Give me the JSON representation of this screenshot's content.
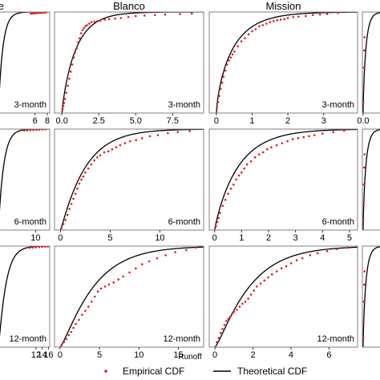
{
  "chart_data": {
    "type": "scatter",
    "xlabel": "Runoff",
    "legend": {
      "placement": "bottom",
      "entries": [
        {
          "label": "Empirical CDF",
          "marker": "point",
          "color": "#e31a1c"
        },
        {
          "label": "Theoretical CDF",
          "marker": "line",
          "color": "#000000"
        }
      ]
    },
    "series_colors": {
      "empirical": "#e31a1c",
      "theoretical": "#000000"
    },
    "grid": false,
    "columns": [
      {
        "title": "…e"
      },
      {
        "title": "Blanco"
      },
      {
        "title": "Mission"
      },
      {
        "title": ""
      }
    ],
    "panels": [
      {
        "row": 0,
        "col": 0,
        "label": "3-month",
        "xlim": [
          0,
          8.4
        ],
        "ylim": [
          0,
          1
        ],
        "xticks": [
          6,
          8
        ],
        "tick_labels": [
          "6",
          "8"
        ],
        "cdf": {
          "family": "gamma",
          "shape": 0.95,
          "scale": 0.75
        },
        "empirical": {
          "x": [
            5.3,
            5.6,
            5.9,
            6.1,
            6.4,
            6.7,
            7.0,
            7.3,
            7.6,
            7.85
          ],
          "y": [
            0.985,
            0.986,
            0.987,
            0.989,
            0.99,
            0.991,
            0.992,
            0.993,
            0.995,
            0.997
          ]
        }
      },
      {
        "row": 0,
        "col": 1,
        "label": "3-month",
        "xlim": [
          -0.5,
          9.6
        ],
        "ylim": [
          0,
          1
        ],
        "xticks": [
          0,
          2.5,
          5,
          7.5
        ],
        "tick_labels": [
          "0.0",
          "2.5",
          "5.0",
          "7.5"
        ],
        "cdf": {
          "family": "gamma",
          "shape": 0.85,
          "scale": 1.15
        },
        "empirical": {
          "x": [
            0.05,
            0.1,
            0.15,
            0.2,
            0.3,
            0.4,
            0.5,
            0.6,
            0.7,
            0.8,
            0.9,
            1.0,
            1.1,
            1.2,
            1.3,
            1.4,
            1.5,
            1.6,
            1.7,
            1.85,
            2.0,
            2.2,
            2.4,
            2.6,
            2.9,
            3.2,
            3.6,
            4.0,
            4.5,
            5.0,
            5.6,
            6.3,
            7.0,
            8.0,
            8.8
          ],
          "y": [
            0.04,
            0.07,
            0.1,
            0.14,
            0.2,
            0.27,
            0.34,
            0.41,
            0.48,
            0.55,
            0.6,
            0.64,
            0.7,
            0.74,
            0.79,
            0.82,
            0.84,
            0.86,
            0.87,
            0.885,
            0.9,
            0.905,
            0.91,
            0.915,
            0.925,
            0.93,
            0.935,
            0.94,
            0.95,
            0.96,
            0.965,
            0.97,
            0.975,
            0.98,
            0.985
          ]
        }
      },
      {
        "row": 0,
        "col": 2,
        "label": "3-month",
        "xlim": [
          -0.2,
          3.95
        ],
        "ylim": [
          0,
          1
        ],
        "xticks": [
          0,
          1,
          2,
          3
        ],
        "tick_labels": [
          "0",
          "1",
          "2",
          "3"
        ],
        "cdf": {
          "family": "gamma",
          "shape": 0.7,
          "scale": 0.7
        },
        "empirical": {
          "x": [
            0.02,
            0.05,
            0.08,
            0.12,
            0.16,
            0.2,
            0.25,
            0.3,
            0.35,
            0.4,
            0.45,
            0.5,
            0.6,
            0.7,
            0.8,
            0.9,
            1.0,
            1.1,
            1.2,
            1.3,
            1.4,
            1.5,
            1.6,
            1.7,
            1.8,
            1.9,
            2.0,
            2.15,
            2.3,
            2.5,
            2.7,
            2.9,
            3.1,
            3.4
          ],
          "y": [
            0.06,
            0.11,
            0.17,
            0.24,
            0.3,
            0.36,
            0.42,
            0.48,
            0.52,
            0.55,
            0.58,
            0.61,
            0.66,
            0.71,
            0.74,
            0.78,
            0.81,
            0.83,
            0.86,
            0.87,
            0.885,
            0.9,
            0.91,
            0.92,
            0.925,
            0.93,
            0.94,
            0.95,
            0.955,
            0.96,
            0.97,
            0.975,
            0.98,
            0.99
          ]
        }
      },
      {
        "row": 0,
        "col": 3,
        "label": "",
        "xlim": [
          -0.1,
          3
        ],
        "ylim": [
          0,
          1
        ],
        "xticks": [
          0
        ],
        "tick_labels": [
          "0.0"
        ],
        "cdf": {
          "family": "gamma",
          "shape": 0.8,
          "scale": 0.5
        },
        "empirical": {
          "x": [
            0.03,
            0.06,
            0.1,
            0.15,
            0.2
          ],
          "y": [
            0.1,
            0.25,
            0.45,
            0.62,
            0.75
          ]
        }
      },
      {
        "row": 1,
        "col": 0,
        "label": "6-month",
        "xlim": [
          0,
          13.8
        ],
        "ylim": [
          0,
          1
        ],
        "xticks": [
          10
        ],
        "tick_labels": [
          "10"
        ],
        "cdf": {
          "family": "gamma",
          "shape": 1.0,
          "scale": 1.4
        },
        "empirical": {
          "x": [
            7.0,
            7.8,
            8.6,
            9.4,
            10.2,
            11.0,
            11.8,
            12.6
          ],
          "y": [
            0.985,
            0.987,
            0.989,
            0.99,
            0.992,
            0.993,
            0.995,
            0.997
          ]
        }
      },
      {
        "row": 1,
        "col": 1,
        "label": "6-month",
        "xlim": [
          -0.6,
          14.4
        ],
        "ylim": [
          0,
          1
        ],
        "xticks": [
          0,
          5,
          10
        ],
        "tick_labels": [
          "0",
          "5",
          "10"
        ],
        "cdf": {
          "family": "gamma",
          "shape": 1.1,
          "scale": 2.3
        },
        "empirical": {
          "x": [
            0.1,
            0.3,
            0.5,
            0.7,
            0.9,
            1.1,
            1.3,
            1.5,
            1.7,
            1.9,
            2.1,
            2.3,
            2.5,
            2.8,
            3.1,
            3.4,
            3.7,
            4.0,
            4.4,
            4.8,
            5.2,
            5.6,
            6.0,
            6.5,
            7.0,
            7.6,
            8.2,
            9.0,
            9.8,
            10.8,
            11.8,
            13.0
          ],
          "y": [
            0.02,
            0.06,
            0.1,
            0.15,
            0.21,
            0.26,
            0.31,
            0.36,
            0.41,
            0.46,
            0.5,
            0.53,
            0.57,
            0.61,
            0.65,
            0.69,
            0.72,
            0.74,
            0.77,
            0.78,
            0.8,
            0.82,
            0.84,
            0.86,
            0.88,
            0.89,
            0.91,
            0.93,
            0.94,
            0.96,
            0.97,
            0.98
          ]
        }
      },
      {
        "row": 1,
        "col": 2,
        "label": "6-month",
        "xlim": [
          -0.2,
          5.3
        ],
        "ylim": [
          0,
          1
        ],
        "xticks": [
          0,
          1,
          2,
          3,
          4,
          5
        ],
        "tick_labels": [
          "0",
          "1",
          "2",
          "3",
          "4",
          "5"
        ],
        "cdf": {
          "family": "gamma",
          "shape": 0.9,
          "scale": 1.0
        },
        "empirical": {
          "x": [
            0.05,
            0.1,
            0.15,
            0.2,
            0.3,
            0.4,
            0.5,
            0.6,
            0.7,
            0.8,
            0.9,
            1.0,
            1.1,
            1.2,
            1.35,
            1.5,
            1.65,
            1.8,
            1.95,
            2.1,
            2.3,
            2.5,
            2.7,
            2.9,
            3.1,
            3.3,
            3.5,
            3.7,
            4.0,
            4.4,
            4.8
          ],
          "y": [
            0.04,
            0.08,
            0.12,
            0.17,
            0.24,
            0.3,
            0.36,
            0.41,
            0.45,
            0.5,
            0.54,
            0.57,
            0.61,
            0.65,
            0.68,
            0.72,
            0.75,
            0.77,
            0.8,
            0.82,
            0.84,
            0.86,
            0.88,
            0.9,
            0.91,
            0.92,
            0.93,
            0.94,
            0.955,
            0.97,
            0.985
          ]
        }
      },
      {
        "row": 1,
        "col": 3,
        "label": "",
        "xlim": [
          -0.1,
          3
        ],
        "ylim": [
          0,
          1
        ],
        "xticks": [],
        "tick_labels": [],
        "cdf": {
          "family": "gamma",
          "shape": 0.8,
          "scale": 0.5
        },
        "empirical": {
          "x": [
            0.03,
            0.06,
            0.1,
            0.15,
            0.2
          ],
          "y": [
            0.1,
            0.25,
            0.45,
            0.62,
            0.75
          ]
        }
      },
      {
        "row": 2,
        "col": 0,
        "label": "12-month",
        "xlim": [
          0,
          16.4
        ],
        "ylim": [
          0,
          1
        ],
        "xticks": [
          12,
          14,
          16
        ],
        "tick_labels": [
          "12",
          "14",
          "16"
        ],
        "cdf": {
          "family": "gamma",
          "shape": 1.2,
          "scale": 2.0
        },
        "empirical": {
          "x": [
            10.0,
            11.0,
            12.0,
            13.0,
            14.0,
            15.0,
            15.8
          ],
          "y": [
            0.984,
            0.986,
            0.988,
            0.99,
            0.992,
            0.994,
            0.996
          ]
        }
      },
      {
        "row": 2,
        "col": 1,
        "label": "12-month",
        "xlim": [
          -0.7,
          18.2
        ],
        "ylim": [
          0,
          1
        ],
        "xticks": [
          0,
          5,
          10,
          15
        ],
        "tick_labels": [
          "0",
          "5",
          "10",
          "15"
        ],
        "cdf": {
          "family": "gamma",
          "shape": 1.3,
          "scale": 3.4
        },
        "empirical": {
          "x": [
            0.2,
            0.5,
            0.8,
            1.1,
            1.4,
            1.7,
            2.0,
            2.4,
            2.8,
            3.2,
            3.6,
            4.0,
            4.4,
            4.8,
            5.2,
            5.7,
            6.2,
            6.8,
            7.4,
            8.0,
            8.8,
            9.6,
            10.4,
            11.3,
            12.3,
            13.4,
            14.6,
            16.0,
            17.2
          ],
          "y": [
            0.02,
            0.05,
            0.08,
            0.12,
            0.15,
            0.19,
            0.23,
            0.27,
            0.32,
            0.36,
            0.4,
            0.45,
            0.5,
            0.55,
            0.58,
            0.6,
            0.62,
            0.64,
            0.67,
            0.7,
            0.74,
            0.78,
            0.82,
            0.85,
            0.88,
            0.91,
            0.94,
            0.96,
            0.985
          ]
        }
      },
      {
        "row": 2,
        "col": 2,
        "label": "12-month",
        "xlim": [
          -0.3,
          7.5
        ],
        "ylim": [
          0,
          1
        ],
        "xticks": [
          0,
          2,
          4,
          6
        ],
        "tick_labels": [
          "0",
          "2",
          "4",
          "6"
        ],
        "cdf": {
          "family": "gamma",
          "shape": 1.3,
          "scale": 1.45
        },
        "empirical": {
          "x": [
            0.1,
            0.2,
            0.3,
            0.4,
            0.5,
            0.6,
            0.7,
            0.8,
            0.9,
            1.0,
            1.15,
            1.3,
            1.45,
            1.6,
            1.75,
            1.9,
            2.05,
            2.2,
            2.4,
            2.6,
            2.8,
            3.0,
            3.25,
            3.5,
            3.75,
            4.0,
            4.3,
            4.6,
            5.0,
            5.4,
            5.9,
            6.4,
            7.0
          ],
          "y": [
            0.05,
            0.09,
            0.14,
            0.18,
            0.22,
            0.26,
            0.28,
            0.3,
            0.33,
            0.35,
            0.37,
            0.4,
            0.43,
            0.45,
            0.48,
            0.52,
            0.56,
            0.6,
            0.63,
            0.66,
            0.69,
            0.72,
            0.75,
            0.78,
            0.8,
            0.83,
            0.86,
            0.88,
            0.91,
            0.93,
            0.95,
            0.97,
            0.985
          ]
        }
      },
      {
        "row": 2,
        "col": 3,
        "label": "",
        "xlim": [
          -0.1,
          3
        ],
        "ylim": [
          0,
          1
        ],
        "xticks": [],
        "tick_labels": [],
        "cdf": {
          "family": "gamma",
          "shape": 0.8,
          "scale": 0.5
        },
        "empirical": {
          "x": [
            0.03,
            0.06,
            0.1,
            0.15,
            0.2
          ],
          "y": [
            0.1,
            0.25,
            0.45,
            0.62,
            0.75
          ]
        }
      }
    ]
  }
}
